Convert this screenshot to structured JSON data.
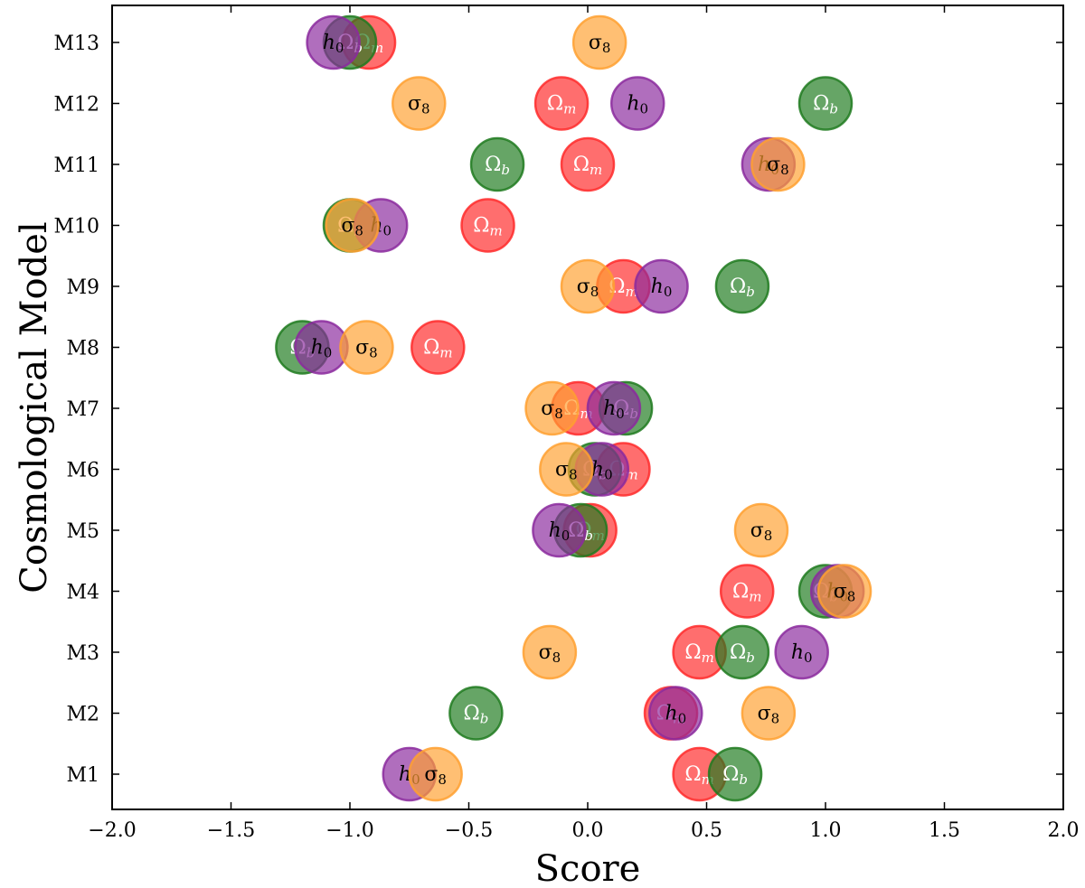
{
  "chart_data": {
    "type": "scatter",
    "xlabel": "Score",
    "ylabel": "Cosmological Model",
    "xlim": [
      -2.0,
      2.0
    ],
    "xticks": [
      -2.0,
      -1.5,
      -1.0,
      -0.5,
      0.0,
      0.5,
      1.0,
      1.5,
      2.0
    ],
    "xtick_labels": [
      "−2.0",
      "−1.5",
      "−1.0",
      "−0.5",
      "0.0",
      "0.5",
      "1.0",
      "1.5",
      "2.0"
    ],
    "categories": [
      "M1",
      "M2",
      "M3",
      "M4",
      "M5",
      "M6",
      "M7",
      "M8",
      "M9",
      "M10",
      "M11",
      "M12",
      "M13"
    ],
    "grid": false,
    "series": [
      {
        "name": "Ωm",
        "label_base": "Ω",
        "label_sub": "m",
        "color": "#ff2a2a",
        "text_color": "#ffffff",
        "values": [
          0.47,
          0.35,
          0.47,
          0.67,
          0.01,
          0.15,
          -0.04,
          -0.63,
          0.15,
          -0.42,
          0.0,
          -0.11,
          -0.92
        ]
      },
      {
        "name": "Ωb",
        "label_base": "Ω",
        "label_sub": "b",
        "color": "#1e7a1e",
        "text_color": "#ffffff",
        "values": [
          0.62,
          -0.47,
          0.65,
          1.0,
          -0.03,
          0.03,
          0.16,
          -1.2,
          0.65,
          -1.0,
          -0.38,
          1.0,
          -1.0
        ]
      },
      {
        "name": "h0",
        "label_base": "h",
        "label_sub": "0",
        "color": "#8b2a9e",
        "text_color": "#000000",
        "values": [
          -0.75,
          0.37,
          0.9,
          1.05,
          -0.12,
          0.06,
          0.11,
          -1.12,
          0.31,
          -0.87,
          0.76,
          0.21,
          -1.07
        ]
      },
      {
        "name": "σ8",
        "label_base": "σ",
        "label_sub": "8",
        "color": "#ffa030",
        "text_color": "#000000",
        "values": [
          -0.64,
          0.76,
          -0.16,
          1.08,
          0.73,
          -0.09,
          -0.15,
          -0.93,
          -0.0,
          -0.99,
          0.8,
          -0.71,
          0.05
        ]
      }
    ]
  }
}
